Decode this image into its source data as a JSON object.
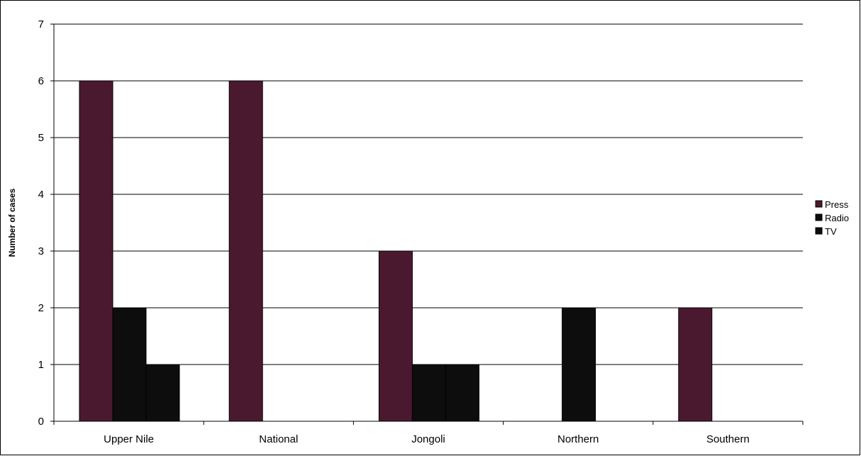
{
  "chart_data": {
    "type": "bar",
    "title": "",
    "xlabel": "",
    "ylabel": "Number of cases",
    "categories": [
      "Upper Nile",
      "National",
      "Jongoli",
      "Northern",
      "Southern"
    ],
    "series": [
      {
        "name": "Press",
        "values": [
          6,
          6,
          3,
          0,
          2
        ],
        "color": "#4a1930"
      },
      {
        "name": "Radio",
        "values": [
          2,
          0,
          1,
          2,
          0
        ],
        "color": "#0d0d0d"
      },
      {
        "name": "TV",
        "values": [
          1,
          0,
          1,
          0,
          0
        ],
        "color": "#0d0d0d"
      }
    ],
    "ylim": [
      0,
      7
    ],
    "yticks": [
      "0",
      "1",
      "2",
      "3",
      "4",
      "5",
      "6",
      "7"
    ],
    "grid": true,
    "legend_position": "right"
  }
}
